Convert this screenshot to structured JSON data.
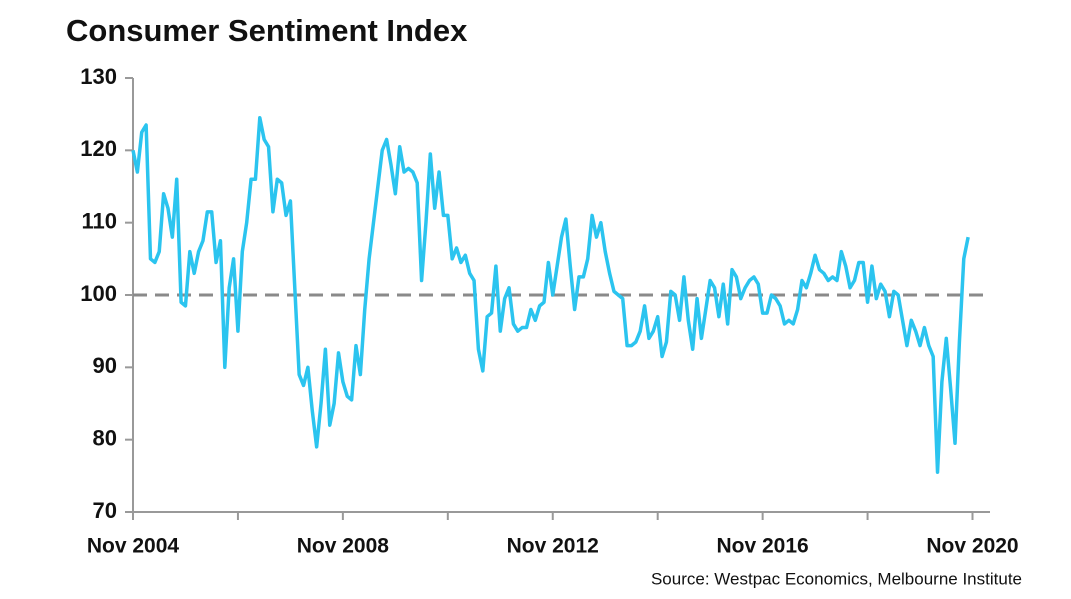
{
  "chart_data": {
    "type": "line",
    "title": "Consumer Sentiment Index",
    "source": "Source: Westpac Economics, Melbourne Institute",
    "x": [
      "2004-11",
      "2004-12",
      "2005-01",
      "2005-02",
      "2005-03",
      "2005-04",
      "2005-05",
      "2005-06",
      "2005-07",
      "2005-08",
      "2005-09",
      "2005-10",
      "2005-11",
      "2005-12",
      "2006-01",
      "2006-02",
      "2006-03",
      "2006-04",
      "2006-05",
      "2006-06",
      "2006-07",
      "2006-08",
      "2006-09",
      "2006-10",
      "2006-11",
      "2006-12",
      "2007-01",
      "2007-02",
      "2007-03",
      "2007-04",
      "2007-05",
      "2007-06",
      "2007-07",
      "2007-08",
      "2007-09",
      "2007-10",
      "2007-11",
      "2007-12",
      "2008-01",
      "2008-02",
      "2008-03",
      "2008-04",
      "2008-05",
      "2008-06",
      "2008-07",
      "2008-08",
      "2008-09",
      "2008-10",
      "2008-11",
      "2008-12",
      "2009-01",
      "2009-02",
      "2009-03",
      "2009-04",
      "2009-05",
      "2009-06",
      "2009-07",
      "2009-08",
      "2009-09",
      "2009-10",
      "2009-11",
      "2009-12",
      "2010-01",
      "2010-02",
      "2010-03",
      "2010-04",
      "2010-05",
      "2010-06",
      "2010-07",
      "2010-08",
      "2010-09",
      "2010-10",
      "2010-11",
      "2010-12",
      "2011-01",
      "2011-02",
      "2011-03",
      "2011-04",
      "2011-05",
      "2011-06",
      "2011-07",
      "2011-08",
      "2011-09",
      "2011-10",
      "2011-11",
      "2011-12",
      "2012-01",
      "2012-02",
      "2012-03",
      "2012-04",
      "2012-05",
      "2012-06",
      "2012-07",
      "2012-08",
      "2012-09",
      "2012-10",
      "2012-11",
      "2012-12",
      "2013-01",
      "2013-02",
      "2013-03",
      "2013-04",
      "2013-05",
      "2013-06",
      "2013-07",
      "2013-08",
      "2013-09",
      "2013-10",
      "2013-11",
      "2013-12",
      "2014-01",
      "2014-02",
      "2014-03",
      "2014-04",
      "2014-05",
      "2014-06",
      "2014-07",
      "2014-08",
      "2014-09",
      "2014-10",
      "2014-11",
      "2014-12",
      "2015-01",
      "2015-02",
      "2015-03",
      "2015-04",
      "2015-05",
      "2015-06",
      "2015-07",
      "2015-08",
      "2015-09",
      "2015-10",
      "2015-11",
      "2015-12",
      "2016-01",
      "2016-02",
      "2016-03",
      "2016-04",
      "2016-05",
      "2016-06",
      "2016-07",
      "2016-08",
      "2016-09",
      "2016-10",
      "2016-11",
      "2016-12",
      "2017-01",
      "2017-02",
      "2017-03",
      "2017-04",
      "2017-05",
      "2017-06",
      "2017-07",
      "2017-08",
      "2017-09",
      "2017-10",
      "2017-11",
      "2017-12",
      "2018-01",
      "2018-02",
      "2018-03",
      "2018-04",
      "2018-05",
      "2018-06",
      "2018-07",
      "2018-08",
      "2018-09",
      "2018-10",
      "2018-11",
      "2018-12",
      "2019-01",
      "2019-02",
      "2019-03",
      "2019-04",
      "2019-05",
      "2019-06",
      "2019-07",
      "2019-08",
      "2019-09",
      "2019-10",
      "2019-11",
      "2019-12",
      "2020-01",
      "2020-02",
      "2020-03",
      "2020-04",
      "2020-05",
      "2020-06",
      "2020-07",
      "2020-08",
      "2020-09",
      "2020-10"
    ],
    "series": [
      {
        "name": "Consumer Sentiment Index",
        "color": "#2bc4ef",
        "values": [
          120,
          117,
          122.5,
          123.5,
          105,
          104.5,
          106,
          114,
          112,
          108,
          116,
          99,
          98.5,
          106,
          103,
          106,
          107.5,
          111.5,
          111.5,
          104.5,
          107.5,
          90,
          101,
          105,
          95,
          106,
          110,
          116,
          116,
          124.5,
          121.5,
          120.5,
          111.5,
          116,
          115.5,
          111,
          113,
          101,
          89,
          87.5,
          90,
          84,
          79,
          85,
          92.5,
          82,
          85,
          92,
          88,
          86,
          85.5,
          93,
          89,
          98,
          105,
          110,
          115,
          120,
          121.5,
          118,
          114,
          120.5,
          117,
          117.5,
          117,
          115.5,
          102,
          110,
          119.5,
          112,
          117,
          111,
          111,
          105,
          106.5,
          104.5,
          105.5,
          103,
          102,
          92.5,
          89.5,
          97,
          97.5,
          104,
          95,
          99.5,
          101,
          96,
          95,
          95.5,
          95.5,
          98,
          96.5,
          98.5,
          99,
          104.5,
          100,
          104,
          108,
          110.5,
          104,
          98,
          102.5,
          102.5,
          105,
          111,
          108,
          110,
          106,
          103,
          100.5,
          100,
          99.5,
          93,
          93,
          93.5,
          95,
          98.5,
          94,
          95,
          97,
          91.5,
          93.5,
          100.5,
          100,
          96.5,
          102.5,
          96.5,
          92.5,
          99.5,
          94,
          98,
          102,
          101,
          97,
          101.5,
          96,
          103.5,
          102.5,
          99.5,
          101,
          102,
          102.5,
          101.5,
          97.5,
          97.5,
          100,
          99.5,
          98.5,
          96,
          96.5,
          96,
          98,
          102,
          101,
          103,
          105.5,
          103.5,
          103,
          102,
          102.5,
          102,
          106,
          104,
          101,
          102,
          104.5,
          104.5,
          99,
          104,
          99.5,
          101.5,
          100.5,
          97,
          100.5,
          100,
          96.5,
          93,
          96.5,
          95,
          93,
          95.5,
          93,
          91.5,
          75.5,
          88,
          94,
          87,
          79.5,
          93.5,
          105,
          108
        ]
      }
    ],
    "reference_line": {
      "value": 100,
      "color": "#8a8a8a",
      "dashed": true
    },
    "xlim": [
      "2004-11",
      "2021-03"
    ],
    "xticks": [
      {
        "value": "2004-11",
        "label": "Nov 2004"
      },
      {
        "value": "2006-11",
        "label": null
      },
      {
        "value": "2008-11",
        "label": "Nov 2008"
      },
      {
        "value": "2010-11",
        "label": null
      },
      {
        "value": "2012-11",
        "label": "Nov 2012"
      },
      {
        "value": "2014-11",
        "label": null
      },
      {
        "value": "2016-11",
        "label": "Nov 2016"
      },
      {
        "value": "2018-11",
        "label": null
      },
      {
        "value": "2020-11",
        "label": "Nov 2020"
      }
    ],
    "ylim": [
      70,
      130
    ],
    "yticks": [
      70,
      80,
      90,
      100,
      110,
      120,
      130
    ],
    "grid": false
  }
}
